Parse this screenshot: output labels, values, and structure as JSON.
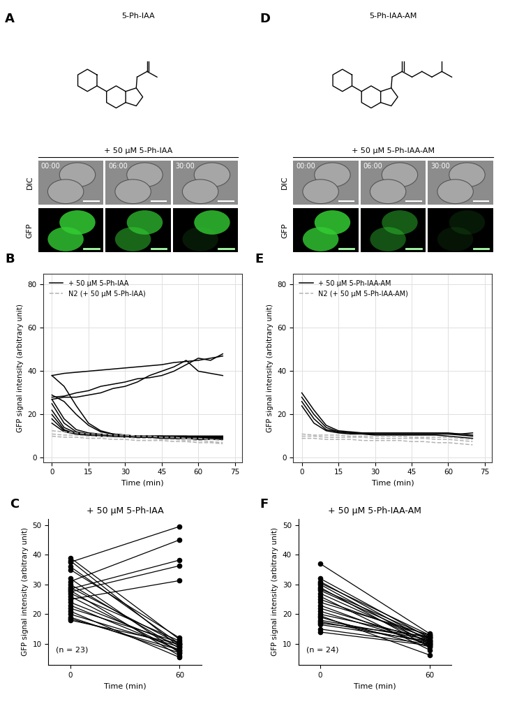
{
  "image_panels": [
    {
      "panel": "A",
      "compound": "5-Ph-IAA",
      "treatment": "+ 50 µM 5-Ph-IAA",
      "times": [
        "00:00",
        "06:00",
        "30:00"
      ],
      "rows": [
        "DIC",
        "GFP"
      ]
    },
    {
      "panel": "D",
      "compound": "5-Ph-IAA-AM",
      "treatment": "+ 50 µM 5-Ph-IAA-AM",
      "times": [
        "00:00",
        "06:00",
        "30:00"
      ],
      "rows": [
        "DIC",
        "GFP"
      ]
    }
  ],
  "chart_data": [
    {
      "panel": "B",
      "type": "line",
      "x_label": "Time (min)",
      "y_label": "GFP signal intensity (arbitrary unit)",
      "x": [
        0,
        5,
        10,
        15,
        20,
        25,
        30,
        35,
        40,
        45,
        50,
        55,
        60,
        65,
        70
      ],
      "xlim": [
        -3.5,
        78
      ],
      "ylim": [
        -2,
        85
      ],
      "xticks": [
        0,
        15,
        30,
        45,
        60,
        75
      ],
      "yticks": [
        0,
        20,
        40,
        60,
        80
      ],
      "grid": true,
      "legend": "upper left",
      "series": [
        {
          "name": "+ 50 µM 5-Ph-IAA",
          "color": "#000000",
          "line_style": "solid",
          "lines": [
            [
              38,
              39,
              39.5,
              40,
              40.5,
              41,
              41.5,
              42,
              42.5,
              43,
              44,
              44.5,
              45,
              46,
              47
            ],
            [
              28,
              28.5,
              30,
              31,
              33,
              34,
              35,
              36.5,
              37,
              38,
              40,
              43,
              46,
              45,
              48
            ],
            [
              27,
              28,
              28,
              29,
              30,
              32,
              33,
              35,
              38,
              40,
              42,
              45,
              40,
              39,
              38
            ],
            [
              38,
              33,
              24,
              16,
              12.5,
              11,
              10.5,
              10,
              10,
              9.5,
              9.5,
              9.5,
              9.5,
              9.5,
              9.5
            ],
            [
              29,
              26,
              20,
              15,
              12,
              11,
              10.5,
              10,
              10,
              10,
              10,
              10,
              10,
              10,
              10
            ],
            [
              27,
              18,
              13,
              11.5,
              11,
              10.5,
              10,
              10,
              10,
              10,
              9.5,
              9.5,
              9.5,
              9.5,
              9.5
            ],
            [
              25,
              16,
              12,
              11,
              10.5,
              10,
              10,
              10,
              10,
              10,
              10,
              10,
              9.5,
              9.5,
              9.5
            ],
            [
              22,
              14,
              11.5,
              11,
              10.5,
              10.5,
              10,
              10,
              9.5,
              9.5,
              9.5,
              9.5,
              9,
              9,
              9
            ],
            [
              20,
              13,
              11,
              10.5,
              10,
              10,
              10,
              9.5,
              9.5,
              9.5,
              9,
              9,
              9,
              9,
              9
            ],
            [
              18,
              12.5,
              11,
              10.5,
              10,
              10,
              9.5,
              9.5,
              9.5,
              9,
              9,
              9,
              8.5,
              8.5,
              8.5
            ],
            [
              16,
              12,
              11,
              10.5,
              10.5,
              10,
              10,
              10,
              10,
              10,
              10,
              10,
              10,
              10,
              10
            ]
          ]
        },
        {
          "name": "N2 (+ 50 µM 5-Ph-IAA)",
          "color": "#b3b3b3",
          "line_style": "dashed",
          "lines": [
            [
              12.5,
              12,
              11.5,
              11,
              11,
              10.5,
              10.5,
              10,
              10,
              9.5,
              9.5,
              9,
              9,
              8.5,
              8
            ],
            [
              11,
              10.5,
              10.5,
              10,
              10,
              9.5,
              9.5,
              9,
              9,
              8.5,
              8.5,
              8,
              8,
              7.5,
              7
            ],
            [
              10,
              9.5,
              9.5,
              9,
              9,
              8.5,
              8.5,
              8,
              8,
              8,
              7.5,
              7.5,
              7,
              7,
              6.5
            ]
          ]
        }
      ]
    },
    {
      "panel": "C",
      "type": "paired",
      "title": "+ 50 µM 5-Ph-IAA",
      "annotation": "(n = 23)",
      "x_label": "Time (min)",
      "y_label": "GFP signal intensity (arbitrary unit)",
      "x": [
        0,
        60
      ],
      "xlim": [
        -12,
        72
      ],
      "ylim": [
        3,
        52
      ],
      "xticks": [
        0,
        60
      ],
      "yticks": [
        10,
        20,
        30,
        40,
        50
      ],
      "color": "#000000",
      "marker": "o",
      "lines": [
        [
          39,
          11.5
        ],
        [
          38,
          9
        ],
        [
          37.5,
          49.5
        ],
        [
          36,
          10
        ],
        [
          35,
          12
        ],
        [
          32,
          7
        ],
        [
          31,
          45
        ],
        [
          30,
          8.5
        ],
        [
          29,
          10
        ],
        [
          28.5,
          38.2
        ],
        [
          28,
          6
        ],
        [
          27.5,
          36.3
        ],
        [
          27,
          11
        ],
        [
          26,
          7.5
        ],
        [
          25,
          31.3
        ],
        [
          24,
          9.5
        ],
        [
          23,
          8
        ],
        [
          22,
          10.5
        ],
        [
          21,
          5.5
        ],
        [
          20,
          9
        ],
        [
          19,
          7
        ],
        [
          18.5,
          8
        ],
        [
          18,
          10
        ]
      ]
    },
    {
      "panel": "E",
      "type": "line",
      "x_label": "Time (min)",
      "y_label": "GFP signal intensity (arbitrary unit)",
      "x": [
        0,
        5,
        10,
        15,
        20,
        25,
        30,
        35,
        40,
        45,
        50,
        55,
        60,
        65,
        70
      ],
      "xlim": [
        -3.5,
        78
      ],
      "ylim": [
        -2,
        85
      ],
      "xticks": [
        0,
        15,
        30,
        45,
        60,
        75
      ],
      "yticks": [
        0,
        20,
        40,
        60,
        80
      ],
      "grid": true,
      "legend": "upper right",
      "series": [
        {
          "name": "+ 50 µM 5-Ph-IAA-AM",
          "color": "#000000",
          "line_style": "solid",
          "lines": [
            [
              30,
              22,
              15,
              12.5,
              12,
              11.5,
              11.5,
              11.5,
              11.5,
              11.5,
              11.5,
              11.5,
              11.5,
              11,
              11.5
            ],
            [
              28,
              20,
              14,
              12,
              11.5,
              11.5,
              11,
              11,
              11,
              11,
              11,
              11,
              11,
              11,
              10.5
            ],
            [
              26,
              18,
              13,
              12,
              11.5,
              11,
              11,
              11,
              11,
              11,
              11,
              11,
              11,
              10.5,
              10
            ],
            [
              24,
              16,
              12.5,
              11.5,
              11,
              11,
              10.5,
              10.5,
              10.5,
              10.5,
              10.5,
              10.5,
              10,
              9.5,
              9
            ]
          ]
        },
        {
          "name": "N2 (+ 50 µM 5-Ph-IAA-AM)",
          "color": "#b3b3b3",
          "line_style": "dashed",
          "lines": [
            [
              11,
              10.5,
              10.5,
              10.5,
              10,
              10,
              10,
              10,
              10,
              9.5,
              9.5,
              9.5,
              9.5,
              9,
              8.5
            ],
            [
              10,
              10,
              9.5,
              9.5,
              9.5,
              9.5,
              9,
              9,
              9,
              9,
              9,
              8.5,
              8.5,
              8,
              7.5
            ],
            [
              9,
              9,
              8.5,
              8.5,
              8.5,
              8,
              8,
              8,
              8,
              7.5,
              7.5,
              7,
              7,
              6.5,
              6
            ]
          ]
        }
      ]
    },
    {
      "panel": "F",
      "type": "paired",
      "title": "+ 50 µM 5-Ph-IAA-AM",
      "annotation": "(n = 24)",
      "x_label": "Time (min)",
      "y_label": "GFP signal intensity (arbitrary unit)",
      "x": [
        0,
        60
      ],
      "xlim": [
        -12,
        72
      ],
      "ylim": [
        3,
        52
      ],
      "xticks": [
        0,
        60
      ],
      "yticks": [
        10,
        20,
        30,
        40,
        50
      ],
      "color": "#000000",
      "marker": "o",
      "lines": [
        [
          37,
          13.5
        ],
        [
          32,
          12
        ],
        [
          31,
          11
        ],
        [
          30.5,
          13
        ],
        [
          30,
          10
        ],
        [
          29,
          9
        ],
        [
          28.5,
          12.5
        ],
        [
          28,
          11.5
        ],
        [
          27,
          10.5
        ],
        [
          26,
          8
        ],
        [
          25,
          12
        ],
        [
          24,
          13
        ],
        [
          23,
          9.5
        ],
        [
          22,
          11
        ],
        [
          21,
          10
        ],
        [
          20,
          12
        ],
        [
          19.5,
          6.3
        ],
        [
          19,
          9
        ],
        [
          18,
          11.5
        ],
        [
          17.5,
          10.5
        ],
        [
          17,
          12.5
        ],
        [
          16.5,
          11
        ],
        [
          15,
          10
        ],
        [
          14,
          9.5
        ]
      ]
    }
  ]
}
